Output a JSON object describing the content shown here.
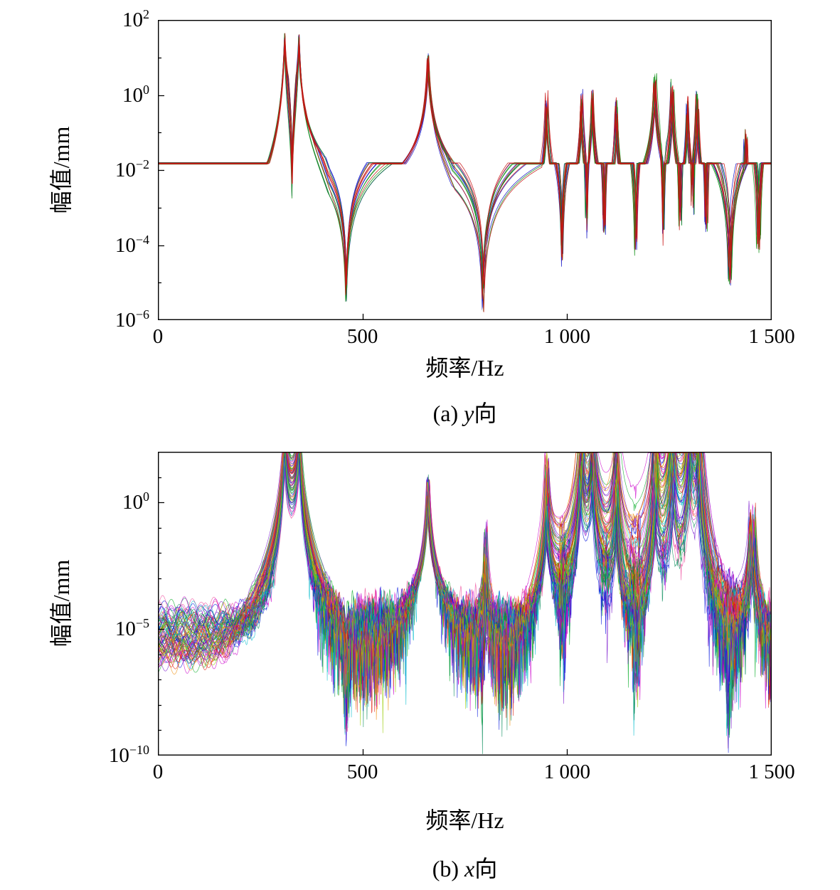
{
  "figure": {
    "type": "dual-frf-magnitude-figure",
    "background": "#ffffff",
    "text_color": "#000000"
  },
  "chart_data": [
    {
      "id": "a",
      "type": "line",
      "direction": "y",
      "caption": {
        "prefix": "(a) ",
        "variable": "y",
        "suffix": "向"
      },
      "xlabel": "频率/Hz",
      "ylabel": "幅值/mm",
      "xlim": [
        0,
        1500
      ],
      "ylog_lim": [
        -6,
        2
      ],
      "grid": false,
      "legend": false,
      "xticks": [
        {
          "value": 0,
          "label": "0"
        },
        {
          "value": 500,
          "label": "500"
        },
        {
          "value": 1000,
          "label": "1 000"
        },
        {
          "value": 1500,
          "label": "1 500"
        }
      ],
      "yticks": [
        {
          "log": 2,
          "exp": "2"
        },
        {
          "log": 0,
          "exp": "0"
        },
        {
          "log": -2,
          "exp": "−2"
        },
        {
          "log": -4,
          "exp": "−4"
        },
        {
          "log": -6,
          "exp": "−6"
        }
      ],
      "yticks_minor": [
        1,
        -1,
        -3,
        -5
      ],
      "n_curves": 15,
      "seed": 11,
      "samples": 2400,
      "base_log": -1.82,
      "base_jitter": 0.025,
      "base_slope": 0,
      "slope_jitter": 0,
      "freq_jitter": 0.0035,
      "amp_jitter_main": 0.08,
      "amp_jitter_cluster": 0.28,
      "cluster_min_hz": 900,
      "notch_jitter": 0.45,
      "peaks": [
        {
          "f": 310,
          "amp_log": 0.92,
          "w": 2.5,
          "decay": 2.2
        },
        {
          "f": 345,
          "amp_log": 1.47,
          "w": 2.5,
          "decay": 2.2
        },
        {
          "f": 660,
          "amp_log": 1.03,
          "w": 2.5,
          "decay": 2.05
        },
        {
          "f": 950,
          "amp_log": -0.12,
          "w": 2.0,
          "decay": 2.2
        },
        {
          "f": 1035,
          "amp_log": -0.1,
          "w": 2.0,
          "decay": 2.3
        },
        {
          "f": 1062,
          "amp_log": -0.04,
          "w": 2.0,
          "decay": 2.3
        },
        {
          "f": 1120,
          "amp_log": -0.22,
          "w": 2.0,
          "decay": 2.3
        },
        {
          "f": 1215,
          "amp_log": 0.42,
          "w": 2.2,
          "decay": 2.1
        },
        {
          "f": 1257,
          "amp_log": 0.22,
          "w": 2.0,
          "decay": 2.3
        },
        {
          "f": 1295,
          "amp_log": -0.18,
          "w": 2.0,
          "decay": 2.4
        },
        {
          "f": 1318,
          "amp_log": -0.08,
          "w": 2.0,
          "decay": 2.4
        },
        {
          "f": 1436,
          "amp_log": -1.05,
          "w": 2.0,
          "decay": 2.4
        }
      ],
      "notches": [
        {
          "f": 328,
          "floor_log": -4.3,
          "w": 1.2,
          "decay": 2.2
        },
        {
          "f": 460,
          "floor_log": -5.15,
          "w": 1.5,
          "decay": 2.0
        },
        {
          "f": 795,
          "floor_log": -5.45,
          "w": 1.5,
          "decay": 2.0
        },
        {
          "f": 988,
          "floor_log": -4.2,
          "w": 1.2,
          "decay": 2.3
        },
        {
          "f": 1048,
          "floor_log": -3.4,
          "w": 1.0,
          "decay": 2.5
        },
        {
          "f": 1090,
          "floor_log": -3.6,
          "w": 1.0,
          "decay": 2.5
        },
        {
          "f": 1168,
          "floor_log": -4.0,
          "w": 1.1,
          "decay": 2.5
        },
        {
          "f": 1237,
          "floor_log": -3.7,
          "w": 1.0,
          "decay": 2.5
        },
        {
          "f": 1276,
          "floor_log": -3.3,
          "w": 1.0,
          "decay": 2.6
        },
        {
          "f": 1307,
          "floor_log": -3.0,
          "w": 0.9,
          "decay": 2.6
        },
        {
          "f": 1340,
          "floor_log": -3.4,
          "w": 1.0,
          "decay": 2.6
        },
        {
          "f": 1398,
          "floor_log": -4.7,
          "w": 1.4,
          "decay": 2.2
        },
        {
          "f": 1468,
          "floor_log": -4.0,
          "w": 1.1,
          "decay": 2.4
        }
      ],
      "noise": {
        "amp": 0,
        "long": [],
        "short": [],
        "spike": [],
        "spike_gain": 0,
        "spike_start_hz": 0
      },
      "palette": [
        "#1515c8",
        "#0f9015",
        "#c81414"
      ],
      "curves_per_color": 5,
      "line_width": 0.8,
      "alpha": 0.9
    },
    {
      "id": "b",
      "type": "line",
      "direction": "x",
      "caption": {
        "prefix": "(b) ",
        "variable": "x",
        "suffix": "向"
      },
      "xlabel": "频率/Hz",
      "ylabel": "幅值/mm",
      "xlim": [
        0,
        1500
      ],
      "ylog_lim": [
        -10,
        2
      ],
      "grid": false,
      "legend": false,
      "xticks": [
        {
          "value": 0,
          "label": "0"
        },
        {
          "value": 500,
          "label": "500"
        },
        {
          "value": 1000,
          "label": "1 000"
        },
        {
          "value": 1500,
          "label": "1 500"
        }
      ],
      "yticks": [
        {
          "log": 0,
          "exp": "0"
        },
        {
          "log": -5,
          "exp": "−5"
        },
        {
          "log": -10,
          "exp": "−10"
        }
      ],
      "yticks_minor": [
        1,
        -1,
        -2,
        -3,
        -4,
        -6,
        -7,
        -8,
        -9
      ],
      "n_curves": 88,
      "seed": 23,
      "samples": 1700,
      "base_log": -5.25,
      "base_jitter": 0.95,
      "base_slope": -0.25,
      "slope_jitter": 0.45,
      "freq_jitter": 0.006,
      "amp_jitter_main": 0.3,
      "amp_jitter_cluster": 0.3,
      "cluster_min_hz": 0,
      "notch_jitter": 0.6,
      "peaks": [
        {
          "f": 310,
          "amp_log": 0.85,
          "w": 3.0,
          "decay": 3.8
        },
        {
          "f": 345,
          "amp_log": 1.05,
          "w": 3.0,
          "decay": 3.8
        },
        {
          "f": 660,
          "amp_log": 0.85,
          "w": 2.8,
          "decay": 3.7
        },
        {
          "f": 800,
          "amp_log": -1.6,
          "w": 1.6,
          "decay": 3.0
        },
        {
          "f": 950,
          "amp_log": 0.35,
          "w": 2.4,
          "decay": 3.6
        },
        {
          "f": 1035,
          "amp_log": 0.5,
          "w": 2.4,
          "decay": 3.6
        },
        {
          "f": 1062,
          "amp_log": 0.55,
          "w": 2.4,
          "decay": 3.6
        },
        {
          "f": 1120,
          "amp_log": 0.1,
          "w": 2.2,
          "decay": 3.6
        },
        {
          "f": 1215,
          "amp_log": 0.35,
          "w": 2.4,
          "decay": 3.6
        },
        {
          "f": 1257,
          "amp_log": 0.45,
          "w": 2.4,
          "decay": 3.6
        },
        {
          "f": 1300,
          "amp_log": 0.5,
          "w": 2.6,
          "decay": 3.6
        },
        {
          "f": 1320,
          "amp_log": 0.45,
          "w": 2.4,
          "decay": 3.6
        },
        {
          "f": 1452,
          "amp_log": -0.55,
          "w": 2.2,
          "decay": 3.4
        }
      ],
      "notches": [
        {
          "f": 460,
          "floor_log": -7.6,
          "w": 1.5,
          "decay": 3.0
        },
        {
          "f": 795,
          "floor_log": -7.6,
          "w": 1.5,
          "decay": 3.0
        },
        {
          "f": 988,
          "floor_log": -7.0,
          "w": 1.2,
          "decay": 3.2
        },
        {
          "f": 1170,
          "floor_log": -7.0,
          "w": 1.2,
          "decay": 3.2
        },
        {
          "f": 1398,
          "floor_log": -7.2,
          "w": 1.4,
          "decay": 3.2
        }
      ],
      "noise": {
        "amp": 0.95,
        "long": [
          [
            41,
            0.28
          ],
          [
            73,
            0.22
          ],
          [
            131,
            0.22
          ]
        ],
        "short": [
          [
            8,
            0.32
          ],
          [
            14,
            0.3
          ],
          [
            23,
            0.26
          ]
        ],
        "spike": [
          [
            5.3,
            1.0
          ],
          [
            8.9,
            1.0
          ]
        ],
        "spike_gain": 2.3,
        "spike_start_hz": 250
      },
      "palette": [
        "#cc00cc",
        "#0011dd",
        "#00aa22",
        "#dd1100",
        "#00bbcc",
        "#99cc00",
        "#ee8800",
        "#7711cc",
        "#ee4499",
        "#008855"
      ],
      "curves_per_color": 0,
      "line_width": 0.65,
      "alpha": 0.8
    }
  ]
}
